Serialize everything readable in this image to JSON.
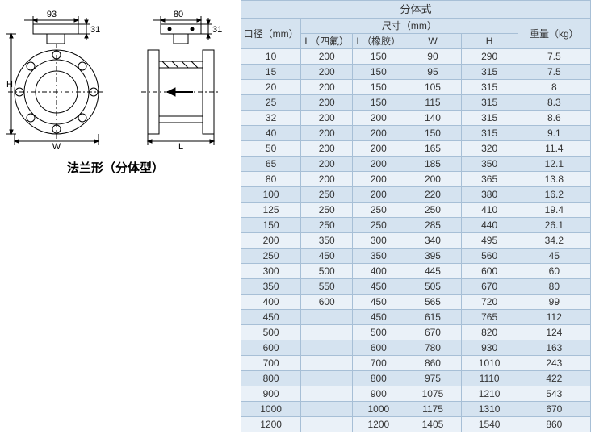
{
  "caption": "法兰形（分体型）",
  "diagram": {
    "left_dims": {
      "top_w": "93",
      "top_h": "31",
      "side_h": "H",
      "bottom_w": "W"
    },
    "right_dims": {
      "top_w": "80",
      "top_h": "31",
      "bottom_l": "L"
    }
  },
  "table": {
    "title": "分体式",
    "header": {
      "col1": "口径（mm）",
      "group": "尺寸（mm）",
      "sub": [
        "L（四氟）",
        "L（橡胶）",
        "W",
        "H"
      ],
      "col6": "重量（kg）"
    },
    "col_widths": [
      "74",
      "64",
      "64",
      "70",
      "70",
      "90"
    ],
    "rows": [
      [
        "10",
        "200",
        "150",
        "90",
        "290",
        "7.5"
      ],
      [
        "15",
        "200",
        "150",
        "95",
        "315",
        "7.5"
      ],
      [
        "20",
        "200",
        "150",
        "105",
        "315",
        "8"
      ],
      [
        "25",
        "200",
        "150",
        "115",
        "315",
        "8.3"
      ],
      [
        "32",
        "200",
        "200",
        "140",
        "315",
        "8.6"
      ],
      [
        "40",
        "200",
        "200",
        "150",
        "315",
        "9.1"
      ],
      [
        "50",
        "200",
        "200",
        "165",
        "320",
        "11.4"
      ],
      [
        "65",
        "200",
        "200",
        "185",
        "350",
        "12.1"
      ],
      [
        "80",
        "200",
        "200",
        "200",
        "365",
        "13.8"
      ],
      [
        "100",
        "250",
        "200",
        "220",
        "380",
        "16.2"
      ],
      [
        "125",
        "250",
        "250",
        "250",
        "410",
        "19.4"
      ],
      [
        "150",
        "250",
        "250",
        "285",
        "440",
        "26.1"
      ],
      [
        "200",
        "350",
        "300",
        "340",
        "495",
        "34.2"
      ],
      [
        "250",
        "450",
        "350",
        "395",
        "560",
        "45"
      ],
      [
        "300",
        "500",
        "400",
        "445",
        "600",
        "60"
      ],
      [
        "350",
        "550",
        "450",
        "505",
        "670",
        "80"
      ],
      [
        "400",
        "600",
        "450",
        "565",
        "720",
        "99"
      ],
      [
        "450",
        "",
        "450",
        "615",
        "765",
        "112"
      ],
      [
        "500",
        "",
        "500",
        "670",
        "820",
        "124"
      ],
      [
        "600",
        "",
        "600",
        "780",
        "930",
        "163"
      ],
      [
        "700",
        "",
        "700",
        "860",
        "1010",
        "243"
      ],
      [
        "800",
        "",
        "800",
        "975",
        "1110",
        "422"
      ],
      [
        "900",
        "",
        "900",
        "1075",
        "1210",
        "543"
      ],
      [
        "1000",
        "",
        "1000",
        "1175",
        "1310",
        "670"
      ],
      [
        "1200",
        "",
        "1200",
        "1405",
        "1540",
        "860"
      ]
    ]
  },
  "style": {
    "header_bg": "#d5e3f0",
    "row_odd_bg": "#eaf1f8",
    "row_even_bg": "#d5e3f0",
    "border": "#a7bfd6"
  }
}
